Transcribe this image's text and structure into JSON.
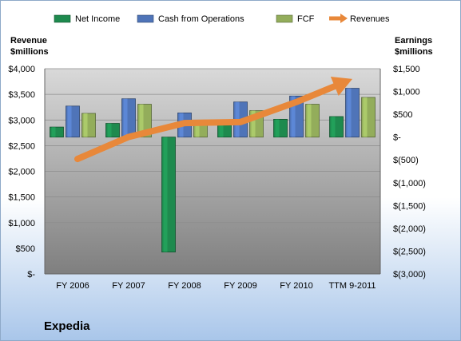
{
  "chart_data": {
    "type": "bar",
    "categories": [
      "FY 2006",
      "FY 2007",
      "FY 2008",
      "FY 2009",
      "FY 2010",
      "TTM 9-2011"
    ],
    "series": [
      {
        "name": "Net Income",
        "axis": "right",
        "values": [
          220,
          300,
          -2520,
          260,
          390,
          450
        ],
        "color": "#1e8a4e"
      },
      {
        "name": "Cash from Operations",
        "axis": "right",
        "values": [
          680,
          840,
          530,
          770,
          900,
          1070
        ],
        "color": "#4f74b8"
      },
      {
        "name": "FCF",
        "axis": "right",
        "values": [
          520,
          720,
          340,
          580,
          720,
          870
        ],
        "color": "#93ad5b"
      },
      {
        "name": "Revenues",
        "axis": "left",
        "type": "arrow-line",
        "values": [
          2240,
          2670,
          2940,
          2960,
          3350,
          3800
        ],
        "color": "#e8883a"
      }
    ],
    "left_axis": {
      "label_line1": "Revenue",
      "label_line2": "$millions",
      "range": [
        0,
        4000
      ],
      "ticks": [
        "$4,000",
        "$3,500",
        "$3,000",
        "$2,500",
        "$2,000",
        "$1,500",
        "$1,000",
        "$500",
        "$-"
      ]
    },
    "right_axis": {
      "label_line1": "Earnings",
      "label_line2": "$millions",
      "range": [
        -3000,
        1500
      ],
      "ticks": [
        "$1,500",
        "$1,000",
        "$500",
        "$-",
        "$(500)",
        "$(1,000)",
        "$(1,500)",
        "$(2,000)",
        "$(2,500)",
        "$(3,000)"
      ]
    },
    "legend_position": "top",
    "grid": true
  },
  "company": "Expedia"
}
